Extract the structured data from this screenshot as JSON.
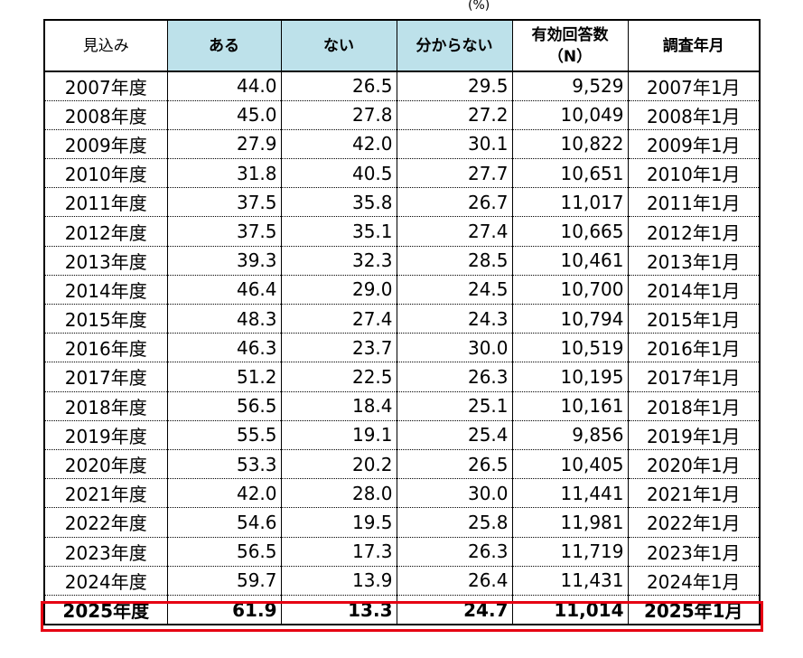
{
  "unit_label": "(%)",
  "header": {
    "col1": "見込み",
    "col2": "ある",
    "col3": "ない",
    "col4": "分からない",
    "col5_line1": "有効回答数",
    "col5_line2": "（N）",
    "col6": "調査年月"
  },
  "rows": [
    {
      "label": "2007年度",
      "yes": "44.0",
      "no": "26.5",
      "unknown": "29.5",
      "n": "9,529",
      "date": "2007年1月"
    },
    {
      "label": "2008年度",
      "yes": "45.0",
      "no": "27.8",
      "unknown": "27.2",
      "n": "10,049",
      "date": "2008年1月"
    },
    {
      "label": "2009年度",
      "yes": "27.9",
      "no": "42.0",
      "unknown": "30.1",
      "n": "10,822",
      "date": "2009年1月"
    },
    {
      "label": "2010年度",
      "yes": "31.8",
      "no": "40.5",
      "unknown": "27.7",
      "n": "10,651",
      "date": "2010年1月"
    },
    {
      "label": "2011年度",
      "yes": "37.5",
      "no": "35.8",
      "unknown": "26.7",
      "n": "11,017",
      "date": "2011年1月"
    },
    {
      "label": "2012年度",
      "yes": "37.5",
      "no": "35.1",
      "unknown": "27.4",
      "n": "10,665",
      "date": "2012年1月"
    },
    {
      "label": "2013年度",
      "yes": "39.3",
      "no": "32.3",
      "unknown": "28.5",
      "n": "10,461",
      "date": "2013年1月"
    },
    {
      "label": "2014年度",
      "yes": "46.4",
      "no": "29.0",
      "unknown": "24.5",
      "n": "10,700",
      "date": "2014年1月"
    },
    {
      "label": "2015年度",
      "yes": "48.3",
      "no": "27.4",
      "unknown": "24.3",
      "n": "10,794",
      "date": "2015年1月"
    },
    {
      "label": "2016年度",
      "yes": "46.3",
      "no": "23.7",
      "unknown": "30.0",
      "n": "10,519",
      "date": "2016年1月"
    },
    {
      "label": "2017年度",
      "yes": "51.2",
      "no": "22.5",
      "unknown": "26.3",
      "n": "10,195",
      "date": "2017年1月"
    },
    {
      "label": "2018年度",
      "yes": "56.5",
      "no": "18.4",
      "unknown": "25.1",
      "n": "10,161",
      "date": "2018年1月"
    },
    {
      "label": "2019年度",
      "yes": "55.5",
      "no": "19.1",
      "unknown": "25.4",
      "n": "9,856",
      "date": "2019年1月"
    },
    {
      "label": "2020年度",
      "yes": "53.3",
      "no": "20.2",
      "unknown": "26.5",
      "n": "10,405",
      "date": "2020年1月"
    },
    {
      "label": "2021年度",
      "yes": "42.0",
      "no": "28.0",
      "unknown": "30.0",
      "n": "11,441",
      "date": "2021年1月"
    },
    {
      "label": "2022年度",
      "yes": "54.6",
      "no": "19.5",
      "unknown": "25.8",
      "n": "11,981",
      "date": "2022年1月"
    },
    {
      "label": "2023年度",
      "yes": "56.5",
      "no": "17.3",
      "unknown": "26.3",
      "n": "11,719",
      "date": "2023年1月"
    },
    {
      "label": "2024年度",
      "yes": "59.7",
      "no": "13.9",
      "unknown": "26.4",
      "n": "11,431",
      "date": "2024年1月"
    },
    {
      "label": "2025年度",
      "yes": "61.9",
      "no": "13.3",
      "unknown": "24.7",
      "n": "11,014",
      "date": "2025年1月"
    }
  ],
  "highlight_row": "2025年度",
  "colors": {
    "header_blue": "#bde1ea",
    "highlight_red": "#e60012"
  }
}
